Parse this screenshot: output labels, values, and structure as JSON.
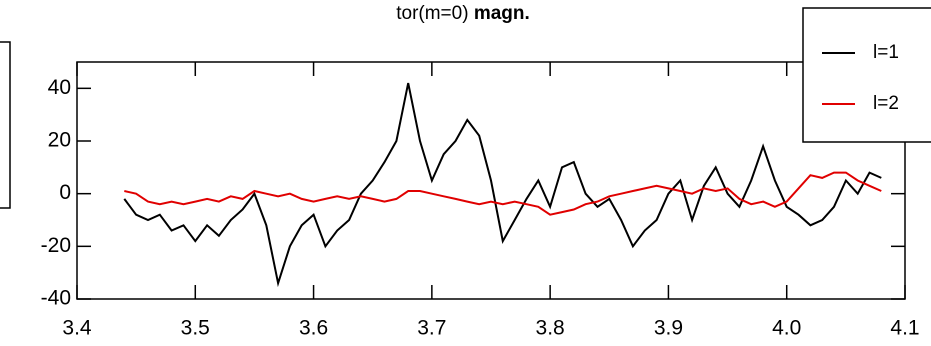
{
  "chart_data": {
    "type": "line",
    "title": "tor(m=0)",
    "title_bold": "magn.",
    "x": [
      3.44,
      3.45,
      3.46,
      3.47,
      3.48,
      3.49,
      3.5,
      3.51,
      3.52,
      3.53,
      3.54,
      3.55,
      3.56,
      3.57,
      3.58,
      3.59,
      3.6,
      3.61,
      3.62,
      3.63,
      3.64,
      3.65,
      3.66,
      3.67,
      3.68,
      3.69,
      3.7,
      3.71,
      3.72,
      3.73,
      3.74,
      3.75,
      3.76,
      3.77,
      3.78,
      3.79,
      3.8,
      3.81,
      3.82,
      3.83,
      3.84,
      3.85,
      3.86,
      3.87,
      3.88,
      3.89,
      3.9,
      3.91,
      3.92,
      3.93,
      3.94,
      3.95,
      3.96,
      3.97,
      3.98,
      3.99,
      4.0,
      4.01,
      4.02,
      4.03,
      4.04,
      4.05,
      4.06,
      4.07,
      4.08
    ],
    "series": [
      {
        "name": "l=1",
        "color": "#000000",
        "values": [
          -2,
          -8,
          -10,
          -8,
          -14,
          -12,
          -18,
          -12,
          -16,
          -10,
          -6,
          0,
          -12,
          -34,
          -20,
          -12,
          -8,
          -20,
          -14,
          -10,
          0,
          5,
          12,
          20,
          42,
          20,
          5,
          15,
          20,
          28,
          22,
          5,
          -18,
          -10,
          -2,
          5,
          -5,
          10,
          12,
          0,
          -5,
          -2,
          -10,
          -20,
          -14,
          -10,
          0,
          5,
          -10,
          3,
          10,
          0,
          -5,
          5,
          18,
          5,
          -5,
          -8,
          -12,
          -10,
          -5,
          5,
          0,
          8,
          6
        ]
      },
      {
        "name": "l=2",
        "color": "#e00000",
        "values": [
          1,
          0,
          -3,
          -4,
          -3,
          -4,
          -3,
          -2,
          -3,
          -1,
          -2,
          1,
          0,
          -1,
          0,
          -2,
          -3,
          -2,
          -1,
          -2,
          -1,
          -2,
          -3,
          -2,
          1,
          1,
          0,
          -1,
          -2,
          -3,
          -4,
          -3,
          -4,
          -3,
          -4,
          -5,
          -8,
          -7,
          -6,
          -4,
          -3,
          -1,
          0,
          1,
          2,
          3,
          2,
          1,
          0,
          2,
          1,
          2,
          -2,
          -4,
          -3,
          -5,
          -3,
          2,
          7,
          6,
          8,
          8,
          5,
          3,
          1
        ]
      }
    ],
    "xlim": [
      3.4,
      4.1
    ],
    "xticks": [
      3.4,
      3.5,
      3.6,
      3.7,
      3.8,
      3.9,
      {
        "value": 4,
        "label": "4.0"
      },
      4.1
    ],
    "ylim": [
      -40,
      50
    ],
    "yticks": [
      -40,
      -20,
      0,
      20,
      40
    ],
    "legend": "top-right"
  }
}
